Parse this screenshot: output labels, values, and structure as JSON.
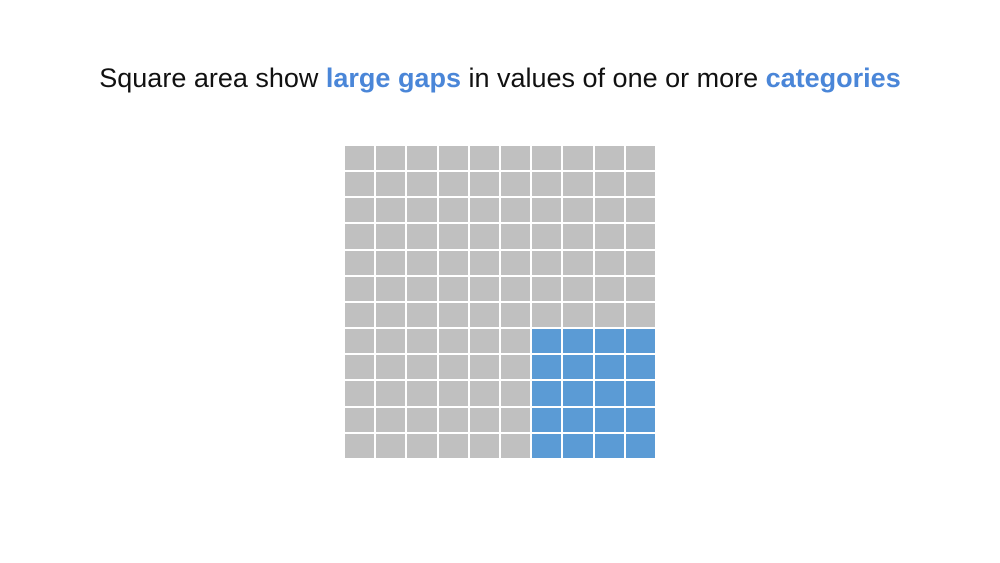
{
  "title": {
    "part1": "Square area show ",
    "highlight1": "large gaps",
    "part2": " in values of one or more ",
    "highlight2": "categories"
  },
  "colors": {
    "highlight": "#4a86d8",
    "cell_default": "#c0c0c0",
    "cell_highlight": "#5b9bd5",
    "title_text": "#111111"
  },
  "grid": {
    "columns": 10,
    "rows": 12,
    "highlight_block": {
      "first_row": 7,
      "last_row": 11,
      "first_col": 6,
      "last_col": 9
    }
  }
}
